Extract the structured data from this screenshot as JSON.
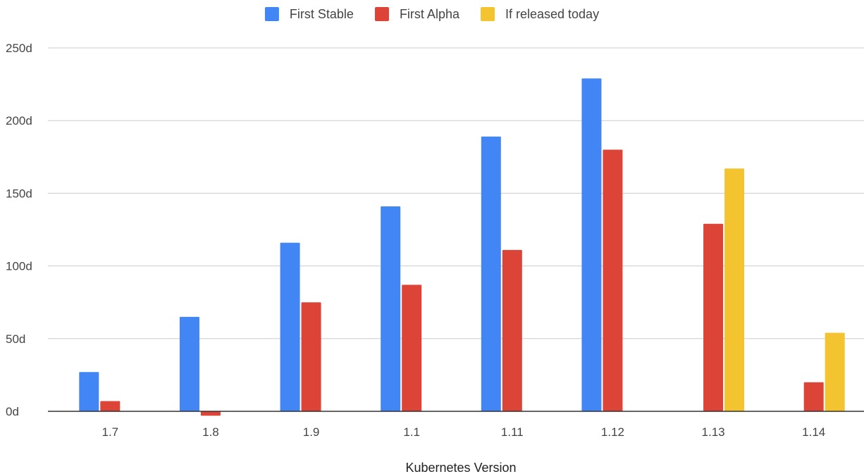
{
  "chart_data": {
    "type": "bar",
    "title": "",
    "xlabel": "Kubernetes Version",
    "ylabel": "",
    "categories": [
      "1.7",
      "1.8",
      "1.9",
      "1.1",
      "1.11",
      "1.12",
      "1.13",
      "1.14"
    ],
    "series": [
      {
        "name": "First Stable",
        "color": "#4285F4",
        "values": [
          27,
          65,
          116,
          141,
          189,
          229,
          null,
          null
        ]
      },
      {
        "name": "First Alpha",
        "color": "#DB4437",
        "values": [
          7,
          -3,
          75,
          87,
          111,
          180,
          129,
          20
        ]
      },
      {
        "name": "If released today",
        "color": "#F4C430",
        "values": [
          null,
          null,
          null,
          null,
          null,
          null,
          167,
          54
        ]
      }
    ],
    "ylim": [
      0,
      250
    ],
    "yticks": [
      0,
      50,
      100,
      150,
      200,
      250
    ],
    "ytick_suffix": "d",
    "grid": true,
    "legend_position": "top-center"
  }
}
